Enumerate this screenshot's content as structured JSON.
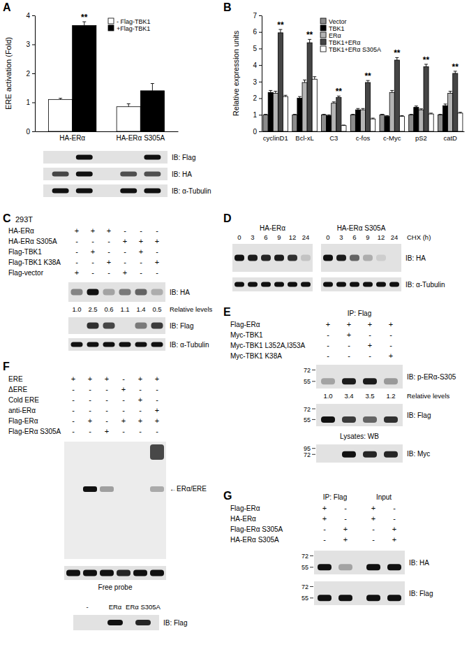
{
  "panel_labels": [
    "A",
    "B",
    "C",
    "D",
    "E",
    "F",
    "G"
  ],
  "chart_data": [
    {
      "type": "bar",
      "ylabel": "ERE activation (Fold)",
      "categories": [
        "HA-ERα",
        "HA-ERα S305A"
      ],
      "series": [
        {
          "name": "- Flag-TBK1",
          "color": "#ffffff",
          "values": [
            1.1,
            0.85
          ],
          "errors": [
            0.04,
            0.1
          ]
        },
        {
          "name": "+Flag-TBK1",
          "color": "#000000",
          "values": [
            3.65,
            1.4
          ],
          "errors": [
            0.13,
            0.25
          ],
          "significance": [
            "**",
            null
          ]
        }
      ],
      "ylim": [
        0,
        4
      ],
      "yticks": [
        0,
        1,
        2,
        3,
        4
      ],
      "legend": "upper right"
    },
    {
      "type": "bar",
      "ylabel": "Relative expression units",
      "categories": [
        "cyclinD1",
        "Bcl-xL",
        "C3",
        "c-fos",
        "c-Myc",
        "pS2",
        "catD"
      ],
      "series": [
        {
          "name": "Vector",
          "color": "#8c8c8c",
          "values": [
            1.0,
            1.0,
            1.0,
            1.0,
            1.0,
            1.0,
            1.0
          ],
          "errors": [
            0.03,
            0.03,
            0.03,
            0.03,
            0.03,
            0.03,
            0.03
          ]
        },
        {
          "name": "TBK1",
          "color": "#000000",
          "values": [
            2.35,
            2.0,
            0.95,
            1.3,
            0.9,
            1.45,
            1.55
          ],
          "errors": [
            0.12,
            0.1,
            0.05,
            0.08,
            0.05,
            0.08,
            0.1
          ]
        },
        {
          "name": "ERα",
          "color": "#b4b4b4",
          "values": [
            2.3,
            2.95,
            1.7,
            1.3,
            2.35,
            1.3,
            2.3
          ],
          "errors": [
            0.12,
            0.15,
            0.08,
            0.08,
            0.12,
            0.06,
            0.12
          ]
        },
        {
          "name": "TBK1+ERα",
          "color": "#454545",
          "values": [
            5.95,
            5.35,
            2.05,
            2.95,
            4.3,
            3.9,
            3.5
          ],
          "errors": [
            0.2,
            0.2,
            0.08,
            0.12,
            0.15,
            0.15,
            0.13
          ],
          "significance": [
            "**",
            "**",
            "**",
            "**",
            "**",
            "**",
            "**"
          ]
        },
        {
          "name": "TBK1+ERα S305A",
          "color": "#ffffff",
          "values": [
            2.1,
            3.15,
            0.35,
            0.75,
            0.9,
            1.05,
            1.1
          ],
          "errors": [
            0.08,
            0.15,
            0.03,
            0.05,
            0.05,
            0.05,
            0.05
          ]
        }
      ],
      "ylim": [
        0,
        7
      ],
      "yticks": [
        0,
        1,
        2,
        3,
        4,
        5,
        6,
        7
      ],
      "legend": "upper center"
    }
  ],
  "panel_a": {
    "blots": [
      {
        "label": "IB: Flag",
        "bands": [
          0,
          1,
          0,
          1
        ]
      },
      {
        "label": "IB: HA",
        "bands": [
          0.75,
          1,
          0.7,
          0.7
        ]
      },
      {
        "label": "IB: α-Tubulin",
        "bands": [
          1,
          1,
          1,
          1
        ]
      }
    ]
  },
  "panel_c": {
    "cell_line": "293T",
    "rows": [
      {
        "label": "HA-ERα",
        "signs": [
          "+",
          "+",
          "+",
          "-",
          "-",
          "-"
        ]
      },
      {
        "label": "HA-ERα S305A",
        "signs": [
          "-",
          "-",
          "-",
          "+",
          "+",
          "+"
        ]
      },
      {
        "label": "Flag-TBK1",
        "signs": [
          "-",
          "+",
          "-",
          "-",
          "+",
          "-"
        ]
      },
      {
        "label": "Flag-TBK1 K38A",
        "signs": [
          "-",
          "-",
          "+",
          "-",
          "-",
          "+"
        ]
      },
      {
        "label": "Flag-vector",
        "signs": [
          "+",
          "-",
          "-",
          "+",
          "-",
          "-"
        ]
      }
    ],
    "blots": [
      {
        "label": "IB: HA",
        "bands": [
          0.45,
          1,
          0.3,
          0.5,
          0.6,
          0.25
        ],
        "relative_levels": [
          "1.0",
          "2.5",
          "0.6",
          "1.1",
          "1.4",
          "0.5"
        ]
      },
      {
        "label": "IB: Flag",
        "bands": [
          0,
          0.85,
          0.75,
          0,
          0.5,
          0.8
        ]
      },
      {
        "label": "IB: α-Tubulin",
        "bands": [
          1,
          1,
          1,
          1,
          1,
          1
        ]
      }
    ],
    "relative_levels_label": "Relative levels"
  },
  "panel_d": {
    "groups": [
      {
        "label": "HA-ERα",
        "times": [
          0,
          3,
          6,
          9,
          12,
          24
        ]
      },
      {
        "label": "HA-ERα S305A",
        "times": [
          0,
          3,
          6,
          9,
          12,
          24
        ]
      }
    ],
    "time_label": "CHX (h)",
    "blots": [
      {
        "label": "IB: HA",
        "bands": [
          1,
          0.95,
          0.9,
          0.95,
          0.85,
          0.15,
          1,
          0.95,
          0.6,
          0.25,
          0.1,
          0
        ]
      },
      {
        "label": "IB: α-Tubulin",
        "bands": [
          1,
          1,
          1,
          1,
          1,
          1,
          1,
          1,
          1,
          1,
          1,
          1
        ]
      }
    ]
  },
  "panel_e": {
    "header": "IP: Flag",
    "rows": [
      {
        "label": "Flag-ERα",
        "signs": [
          "+",
          "+",
          "+",
          "+"
        ]
      },
      {
        "label": "Myc-TBK1",
        "signs": [
          "-",
          "+",
          "-",
          "-"
        ]
      },
      {
        "label": "Myc-TBK1 L352A,I353A",
        "signs": [
          "-",
          "-",
          "+",
          "-"
        ]
      },
      {
        "label": "Myc-TBK1 K38A",
        "signs": [
          "-",
          "-",
          "-",
          "+"
        ]
      }
    ],
    "blots": [
      {
        "label": "IB: p-ERα-S305",
        "markers": [
          72,
          55
        ],
        "bands": [
          0.3,
          0.95,
          0.95,
          0.35
        ],
        "relative_levels": [
          "1.0",
          "3.4",
          "3.5",
          "1.2"
        ]
      },
      {
        "label": "IB: Flag",
        "markers": [
          72,
          55
        ],
        "bands": [
          1,
          0.8,
          0.6,
          0.85
        ]
      }
    ],
    "relative_levels_label": "Relative levels",
    "lysate_label": "Lysates: WB",
    "lysate_blots": [
      {
        "label": "IB: Myc",
        "markers": [
          95,
          72
        ],
        "bands": [
          0,
          1,
          0.9,
          0.9
        ]
      }
    ]
  },
  "panel_f": {
    "rows": [
      {
        "label": "ERE",
        "signs": [
          "+",
          "+",
          "+",
          "-",
          "+",
          "+"
        ]
      },
      {
        "label": "ΔERE",
        "signs": [
          "-",
          "-",
          "-",
          "+",
          "-",
          "-"
        ]
      },
      {
        "label": "Cold ERE",
        "signs": [
          "-",
          "-",
          "-",
          "-",
          "+",
          "-"
        ]
      },
      {
        "label": "anti-ERα",
        "signs": [
          "-",
          "-",
          "-",
          "-",
          "-",
          "+"
        ]
      },
      {
        "label": "Flag-ERα",
        "signs": [
          "-",
          "+",
          "-",
          "+",
          "+",
          "+"
        ]
      },
      {
        "label": "Flag-ERα S305A",
        "signs": [
          "-",
          "-",
          "+",
          "-",
          "-",
          "-"
        ]
      }
    ],
    "gel": {
      "label": "←ERα/ERE",
      "bands": [
        0,
        1,
        0.35,
        0,
        0,
        0.3
      ],
      "supershift": [
        0,
        0,
        0,
        0,
        0,
        0.75
      ]
    },
    "free_probe": {
      "label": "Free probe",
      "bands": [
        1,
        1,
        1,
        0.9,
        1,
        1
      ]
    },
    "flag_blot": {
      "lanes": [
        "-",
        "ERα",
        "ERα S305A"
      ],
      "label": "IB: Flag",
      "bands": [
        0,
        1,
        0.9
      ]
    }
  },
  "panel_g": {
    "headers": [
      "IP: Flag",
      "Input"
    ],
    "rows": [
      {
        "label": "Flag-ERα",
        "signs": [
          "+",
          "-",
          "+",
          "-"
        ]
      },
      {
        "label": "HA-ERα",
        "signs": [
          "+",
          "-",
          "+",
          "-"
        ]
      },
      {
        "label": "Flag-ERα S305A",
        "signs": [
          "-",
          "+",
          "-",
          "+"
        ]
      },
      {
        "label": "HA-ERα S305A",
        "signs": [
          "-",
          "+",
          "-",
          "+"
        ]
      }
    ],
    "blots": [
      {
        "label": "IB: HA",
        "markers": [
          72,
          55
        ],
        "bands": [
          1,
          0.3,
          1,
          1
        ]
      },
      {
        "label": "IB: Flag",
        "markers": [
          72,
          55
        ],
        "bands": [
          1,
          1,
          1,
          1
        ]
      }
    ]
  }
}
